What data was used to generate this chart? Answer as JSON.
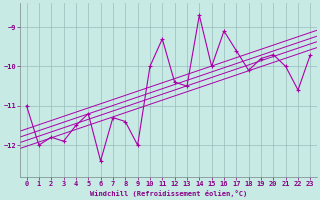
{
  "x": [
    0,
    1,
    2,
    3,
    4,
    5,
    6,
    7,
    8,
    9,
    10,
    11,
    12,
    13,
    14,
    15,
    16,
    17,
    18,
    19,
    20,
    21,
    22,
    23
  ],
  "y": [
    -11.0,
    -12.0,
    -11.8,
    -11.9,
    -11.5,
    -11.2,
    -12.4,
    -11.3,
    -11.4,
    -12.0,
    -10.0,
    -9.3,
    -10.4,
    -10.5,
    -8.7,
    -10.0,
    -9.1,
    -9.6,
    -10.1,
    -9.8,
    -9.7,
    -10.0,
    -10.6,
    -9.7
  ],
  "bg_color": "#c8eae4",
  "line_color": "#aa00aa",
  "grid_color": "#99bbbb",
  "xlabel": "Windchill (Refroidissement éolien,°C)",
  "ylim": [
    -12.8,
    -8.4
  ],
  "xlim": [
    -0.5,
    23.5
  ],
  "yticks": [
    -12,
    -11,
    -10,
    -9
  ],
  "xticks": [
    0,
    1,
    2,
    3,
    4,
    5,
    6,
    7,
    8,
    9,
    10,
    11,
    12,
    13,
    14,
    15,
    16,
    17,
    18,
    19,
    20,
    21,
    22,
    23
  ],
  "text_color": "#880088",
  "tick_color": "#880088",
  "font_size": 5.0,
  "reg_offsets": [
    -0.22,
    -0.07,
    0.07,
    0.22
  ]
}
